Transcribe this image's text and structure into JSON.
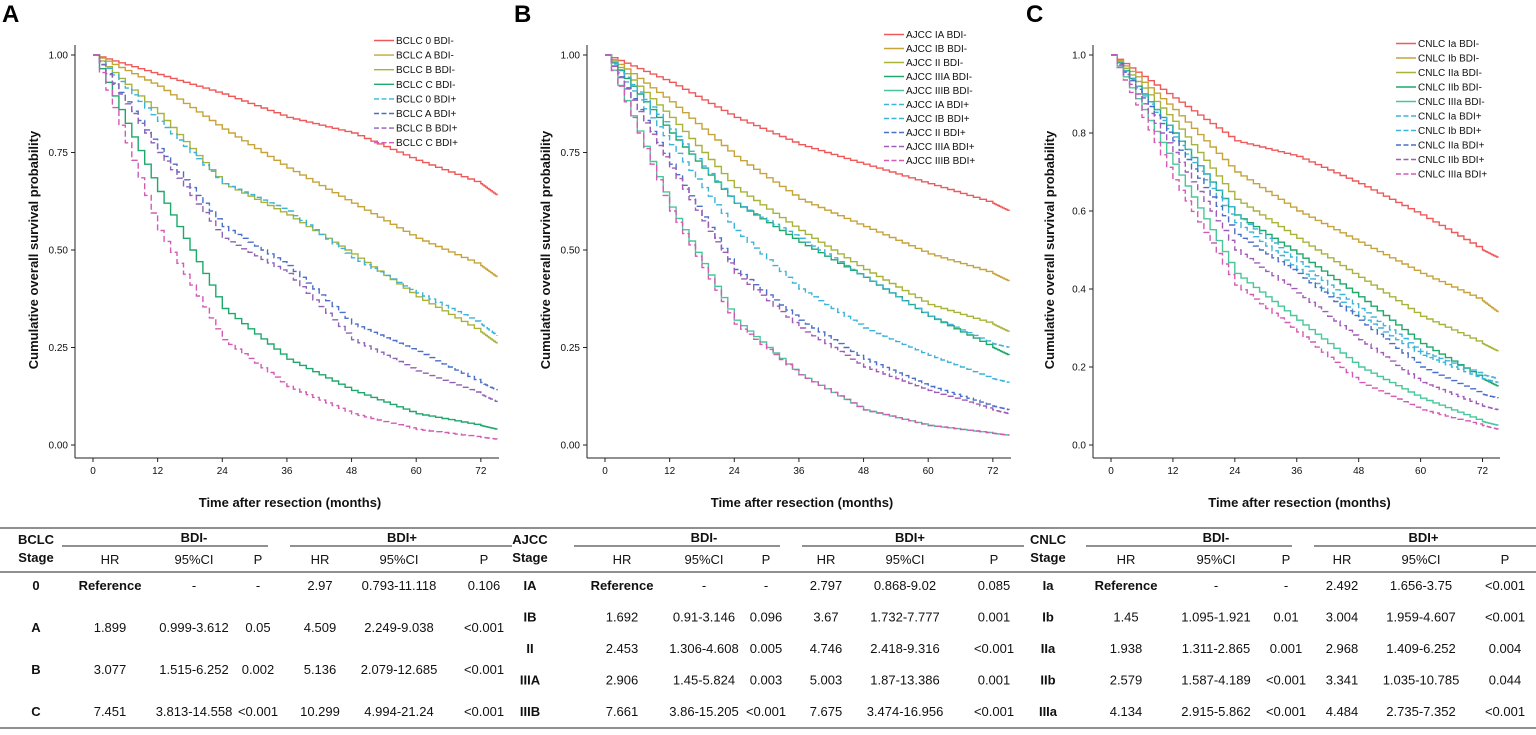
{
  "colors": {
    "red": "#ee5a5a",
    "gold": "#c8a33a",
    "olive": "#a9b33a",
    "green": "#1ea86b",
    "teal": "#49c79a",
    "cyan": "#3cb3d8",
    "blue": "#4a6fc8",
    "purple": "#8e62b5",
    "violet": "#a25ab8",
    "magenta": "#d45ab6"
  },
  "chart_data": [
    {
      "type": "line",
      "panel_label": "A",
      "xlabel": "Time after resection (months)",
      "ylabel": "Cumulative overall survival probability",
      "xlim": [
        0,
        75
      ],
      "ylim": [
        0,
        1
      ],
      "xticks": [
        0,
        12,
        24,
        36,
        48,
        60,
        72
      ],
      "yticks": [
        0,
        0.25,
        0.5,
        0.75,
        1.0
      ],
      "ytick_labels": [
        "0.00",
        "0.25",
        "0.50",
        "0.75",
        "1.00"
      ],
      "legend_position": "top-right",
      "series": [
        {
          "name": "BCLC 0 BDI-",
          "color_key": "red",
          "dash": false,
          "x": [
            0,
            12,
            24,
            36,
            48,
            60,
            72,
            75
          ],
          "y": [
            1,
            0.95,
            0.9,
            0.84,
            0.8,
            0.73,
            0.67,
            0.64
          ]
        },
        {
          "name": "BCLC A BDI-",
          "color_key": "gold",
          "dash": false,
          "x": [
            0,
            12,
            24,
            36,
            48,
            60,
            72,
            75
          ],
          "y": [
            1,
            0.92,
            0.81,
            0.71,
            0.62,
            0.53,
            0.46,
            0.43
          ]
        },
        {
          "name": "BCLC B BDI-",
          "color_key": "olive",
          "dash": false,
          "x": [
            0,
            12,
            24,
            36,
            48,
            60,
            72,
            75
          ],
          "y": [
            1,
            0.85,
            0.67,
            0.59,
            0.49,
            0.38,
            0.29,
            0.26
          ]
        },
        {
          "name": "BCLC C BDI-",
          "color_key": "green",
          "dash": false,
          "x": [
            0,
            12,
            24,
            36,
            48,
            60,
            72,
            75
          ],
          "y": [
            1,
            0.65,
            0.35,
            0.22,
            0.14,
            0.08,
            0.05,
            0.04
          ]
        },
        {
          "name": "BCLC 0 BDI+",
          "color_key": "cyan",
          "dash": true,
          "x": [
            0,
            12,
            24,
            36,
            48,
            60,
            72,
            75
          ],
          "y": [
            1,
            0.83,
            0.67,
            0.6,
            0.48,
            0.39,
            0.31,
            0.28
          ]
        },
        {
          "name": "BCLC A BDI+",
          "color_key": "blue",
          "dash": true,
          "x": [
            0,
            12,
            24,
            36,
            48,
            60,
            72,
            75
          ],
          "y": [
            1,
            0.76,
            0.56,
            0.46,
            0.31,
            0.24,
            0.16,
            0.14
          ]
        },
        {
          "name": "BCLC B BDI+",
          "color_key": "purple",
          "dash": true,
          "x": [
            0,
            12,
            24,
            36,
            48,
            60,
            72,
            75
          ],
          "y": [
            1,
            0.75,
            0.53,
            0.44,
            0.27,
            0.19,
            0.13,
            0.11
          ]
        },
        {
          "name": "BCLC C BDI+",
          "color_key": "magenta",
          "dash": true,
          "x": [
            0,
            12,
            24,
            36,
            48,
            60,
            72,
            75
          ],
          "y": [
            1,
            0.55,
            0.27,
            0.15,
            0.08,
            0.04,
            0.02,
            0.015
          ]
        }
      ]
    },
    {
      "type": "line",
      "panel_label": "B",
      "xlabel": "Time after resection (months)",
      "ylabel": "Cumulative overall survival probability",
      "xlim": [
        0,
        75
      ],
      "ylim": [
        0,
        1
      ],
      "xticks": [
        0,
        12,
        24,
        36,
        48,
        60,
        72
      ],
      "yticks": [
        0,
        0.25,
        0.5,
        0.75,
        1.0
      ],
      "ytick_labels": [
        "0.00",
        "0.25",
        "0.50",
        "0.75",
        "1.00"
      ],
      "legend_position": "top-right",
      "series": [
        {
          "name": "AJCC IA BDI-",
          "color_key": "red",
          "dash": false,
          "x": [
            0,
            12,
            24,
            36,
            48,
            60,
            72,
            75
          ],
          "y": [
            1,
            0.93,
            0.84,
            0.77,
            0.72,
            0.67,
            0.62,
            0.6
          ]
        },
        {
          "name": "AJCC IB BDI-",
          "color_key": "gold",
          "dash": false,
          "x": [
            0,
            12,
            24,
            36,
            48,
            60,
            72,
            75
          ],
          "y": [
            1,
            0.88,
            0.74,
            0.63,
            0.56,
            0.49,
            0.44,
            0.42
          ]
        },
        {
          "name": "AJCC II BDI-",
          "color_key": "olive",
          "dash": false,
          "x": [
            0,
            12,
            24,
            36,
            48,
            60,
            72,
            75
          ],
          "y": [
            1,
            0.84,
            0.66,
            0.55,
            0.45,
            0.36,
            0.31,
            0.29
          ]
        },
        {
          "name": "AJCC IIIA BDI-",
          "color_key": "green",
          "dash": false,
          "x": [
            0,
            12,
            24,
            36,
            48,
            60,
            72,
            75
          ],
          "y": [
            1,
            0.8,
            0.62,
            0.52,
            0.43,
            0.33,
            0.25,
            0.23
          ]
        },
        {
          "name": "AJCC IIIB BDI-",
          "color_key": "teal",
          "dash": false,
          "x": [
            0,
            12,
            24,
            36,
            48,
            60,
            72,
            75
          ],
          "y": [
            1,
            0.61,
            0.32,
            0.18,
            0.09,
            0.05,
            0.03,
            0.025
          ]
        },
        {
          "name": "AJCC IA BDI+",
          "color_key": "cyan",
          "dash": true,
          "x": [
            0,
            12,
            24,
            36,
            48,
            60,
            72,
            75
          ],
          "y": [
            1,
            0.81,
            0.62,
            0.53,
            0.43,
            0.33,
            0.26,
            0.25
          ]
        },
        {
          "name": "AJCC IB BDI+",
          "color_key": "cyan",
          "dash": true,
          "x": [
            0,
            12,
            24,
            36,
            48,
            60,
            72,
            75
          ],
          "y": [
            1,
            0.77,
            0.55,
            0.4,
            0.3,
            0.23,
            0.17,
            0.16
          ]
        },
        {
          "name": "AJCC II BDI+",
          "color_key": "blue",
          "dash": true,
          "x": [
            0,
            12,
            24,
            36,
            48,
            60,
            72,
            75
          ],
          "y": [
            1,
            0.72,
            0.45,
            0.32,
            0.22,
            0.15,
            0.1,
            0.09
          ]
        },
        {
          "name": "AJCC IIIA BDI+",
          "color_key": "violet",
          "dash": true,
          "x": [
            0,
            12,
            24,
            36,
            48,
            60,
            72,
            75
          ],
          "y": [
            1,
            0.71,
            0.44,
            0.3,
            0.2,
            0.14,
            0.09,
            0.08
          ]
        },
        {
          "name": "AJCC IIIB BDI+",
          "color_key": "magenta",
          "dash": true,
          "x": [
            0,
            12,
            24,
            36,
            48,
            60,
            72,
            75
          ],
          "y": [
            1,
            0.6,
            0.31,
            0.18,
            0.09,
            0.05,
            0.03,
            0.025
          ]
        }
      ]
    },
    {
      "type": "line",
      "panel_label": "C",
      "xlabel": "Time after resection (months)",
      "ylabel": "Cumulative overall survival probability",
      "xlim": [
        0,
        75
      ],
      "ylim": [
        0,
        1
      ],
      "xticks": [
        0,
        12,
        24,
        36,
        48,
        60,
        72
      ],
      "yticks": [
        0,
        0.2,
        0.4,
        0.6,
        0.8,
        1.0
      ],
      "ytick_labels": [
        "0.0",
        "0.2",
        "0.4",
        "0.6",
        "0.8",
        "1.0"
      ],
      "legend_position": "top-right",
      "series": [
        {
          "name": "CNLC Ia BDI-",
          "color_key": "red",
          "dash": false,
          "x": [
            0,
            12,
            24,
            36,
            48,
            60,
            72,
            75
          ],
          "y": [
            1,
            0.89,
            0.78,
            0.74,
            0.67,
            0.59,
            0.5,
            0.48
          ]
        },
        {
          "name": "CNLC Ib BDI-",
          "color_key": "gold",
          "dash": false,
          "x": [
            0,
            12,
            24,
            36,
            48,
            60,
            72,
            75
          ],
          "y": [
            1,
            0.86,
            0.7,
            0.6,
            0.52,
            0.44,
            0.37,
            0.34
          ]
        },
        {
          "name": "CNLC IIa BDI-",
          "color_key": "olive",
          "dash": false,
          "x": [
            0,
            12,
            24,
            36,
            48,
            60,
            72,
            75
          ],
          "y": [
            1,
            0.83,
            0.63,
            0.53,
            0.43,
            0.33,
            0.26,
            0.24
          ]
        },
        {
          "name": "CNLC IIb BDI-",
          "color_key": "green",
          "dash": false,
          "x": [
            0,
            12,
            24,
            36,
            48,
            60,
            72,
            75
          ],
          "y": [
            1,
            0.8,
            0.59,
            0.49,
            0.38,
            0.26,
            0.17,
            0.15
          ]
        },
        {
          "name": "CNLC IIIa BDI-",
          "color_key": "teal",
          "dash": false,
          "x": [
            0,
            12,
            24,
            36,
            48,
            60,
            72,
            75
          ],
          "y": [
            1,
            0.72,
            0.44,
            0.32,
            0.2,
            0.12,
            0.06,
            0.05
          ]
        },
        {
          "name": "CNLC Ia BDI+",
          "color_key": "cyan",
          "dash": true,
          "x": [
            0,
            12,
            24,
            36,
            48,
            60,
            72,
            75
          ],
          "y": [
            1,
            0.8,
            0.59,
            0.47,
            0.35,
            0.24,
            0.18,
            0.17
          ]
        },
        {
          "name": "CNLC Ib BDI+",
          "color_key": "cyan",
          "dash": true,
          "x": [
            0,
            12,
            24,
            36,
            48,
            60,
            72,
            75
          ],
          "y": [
            1,
            0.79,
            0.57,
            0.45,
            0.33,
            0.23,
            0.17,
            0.16
          ]
        },
        {
          "name": "CNLC IIa BDI+",
          "color_key": "blue",
          "dash": true,
          "x": [
            0,
            12,
            24,
            36,
            48,
            60,
            72,
            75
          ],
          "y": [
            1,
            0.78,
            0.54,
            0.44,
            0.32,
            0.2,
            0.13,
            0.12
          ]
        },
        {
          "name": "CNLC IIb BDI+",
          "color_key": "violet",
          "dash": true,
          "x": [
            0,
            12,
            24,
            36,
            48,
            60,
            72,
            75
          ],
          "y": [
            1,
            0.75,
            0.5,
            0.39,
            0.27,
            0.16,
            0.1,
            0.09
          ]
        },
        {
          "name": "CNLC IIIa BDI+",
          "color_key": "magenta",
          "dash": true,
          "x": [
            0,
            12,
            24,
            36,
            48,
            60,
            72,
            75
          ],
          "y": [
            1,
            0.68,
            0.41,
            0.29,
            0.16,
            0.09,
            0.05,
            0.04
          ]
        }
      ]
    }
  ],
  "tables": [
    {
      "stage_header": [
        "BCLC",
        "Stage"
      ],
      "neg_header": "BDI-",
      "pos_header": "BDI+",
      "cols": [
        "HR",
        "95%CI",
        "P",
        "HR",
        "95%CI",
        "P"
      ],
      "rows": [
        {
          "stage": "0",
          "cells": [
            "Reference",
            "-",
            "-",
            "2.97",
            "0.793-11.118",
            "0.106"
          ]
        },
        {
          "stage": "A",
          "cells": [
            "1.899",
            "0.999-3.612",
            "0.05",
            "4.509",
            "2.249-9.038",
            "<0.001"
          ]
        },
        {
          "stage": "B",
          "cells": [
            "3.077",
            "1.515-6.252",
            "0.002",
            "5.136",
            "2.079-12.685",
            "<0.001"
          ]
        },
        {
          "stage": "C",
          "cells": [
            "7.451",
            "3.813-14.558",
            "<0.001",
            "10.299",
            "4.994-21.24",
            "<0.001"
          ]
        }
      ]
    },
    {
      "stage_header": [
        "AJCC",
        "Stage"
      ],
      "neg_header": "BDI-",
      "pos_header": "BDI+",
      "cols": [
        "HR",
        "95%CI",
        "P",
        "HR",
        "95%CI",
        "P"
      ],
      "rows": [
        {
          "stage": "IA",
          "cells": [
            "Reference",
            "-",
            "-",
            "2.797",
            "0.868-9.02",
            "0.085"
          ]
        },
        {
          "stage": "IB",
          "cells": [
            "1.692",
            "0.91-3.146",
            "0.096",
            "3.67",
            "1.732-7.777",
            "0.001"
          ]
        },
        {
          "stage": "II",
          "cells": [
            "2.453",
            "1.306-4.608",
            "0.005",
            "4.746",
            "2.418-9.316",
            "<0.001"
          ]
        },
        {
          "stage": "IIIA",
          "cells": [
            "2.906",
            "1.45-5.824",
            "0.003",
            "5.003",
            "1.87-13.386",
            "0.001"
          ]
        },
        {
          "stage": "IIIB",
          "cells": [
            "7.661",
            "3.86-15.205",
            "<0.001",
            "7.675",
            "3.474-16.956",
            "<0.001"
          ]
        }
      ]
    },
    {
      "stage_header": [
        "CNLC",
        "Stage"
      ],
      "neg_header": "BDI-",
      "pos_header": "BDI+",
      "cols": [
        "HR",
        "95%CI",
        "P",
        "HR",
        "95%CI",
        "P"
      ],
      "rows": [
        {
          "stage": "Ia",
          "cells": [
            "Reference",
            "-",
            "-",
            "2.492",
            "1.656-3.75",
            "<0.001"
          ]
        },
        {
          "stage": "Ib",
          "cells": [
            "1.45",
            "1.095-1.921",
            "0.01",
            "3.004",
            "1.959-4.607",
            "<0.001"
          ]
        },
        {
          "stage": "IIa",
          "cells": [
            "1.938",
            "1.311-2.865",
            "0.001",
            "2.968",
            "1.409-6.252",
            "0.004"
          ]
        },
        {
          "stage": "IIb",
          "cells": [
            "2.579",
            "1.587-4.189",
            "<0.001",
            "3.341",
            "1.035-10.785",
            "0.044"
          ]
        },
        {
          "stage": "IIIa",
          "cells": [
            "4.134",
            "2.915-5.862",
            "<0.001",
            "4.484",
            "2.735-7.352",
            "<0.001"
          ]
        }
      ]
    }
  ]
}
